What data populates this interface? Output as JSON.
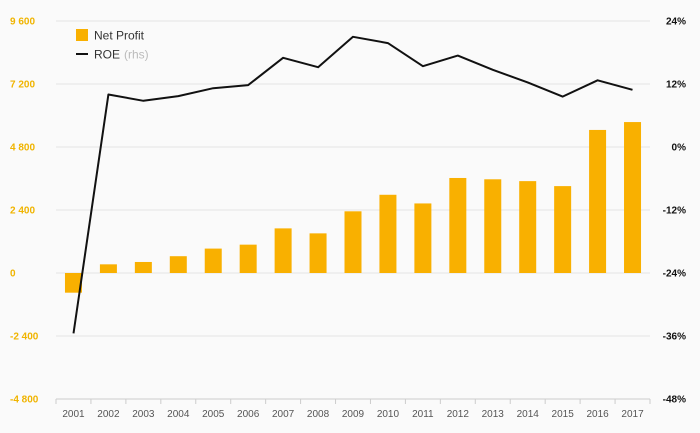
{
  "chart_data": {
    "type": "bar",
    "categories": [
      "2001",
      "2002",
      "2003",
      "2004",
      "2005",
      "2006",
      "2007",
      "2008",
      "2009",
      "2010",
      "2011",
      "2012",
      "2013",
      "2014",
      "2015",
      "2016",
      "2017"
    ],
    "series": [
      {
        "name": "Net Profit",
        "type": "bar",
        "axis": "left",
        "values": [
          -750,
          330,
          420,
          640,
          930,
          1080,
          1700,
          1510,
          2350,
          2980,
          2650,
          3620,
          3570,
          3500,
          3310,
          5450,
          5750
        ]
      },
      {
        "name": "ROE",
        "type": "line",
        "axis": "right",
        "values": [
          -35.5,
          10.0,
          8.8,
          9.7,
          11.2,
          11.8,
          17.0,
          15.2,
          21.0,
          19.8,
          15.4,
          17.4,
          14.7,
          12.3,
          9.6,
          12.7,
          10.9
        ]
      }
    ],
    "legend": {
      "position": "top-left",
      "entries": [
        {
          "label": "Net Profit",
          "note": ""
        },
        {
          "label": "ROE",
          "note": "(rhs)"
        }
      ]
    },
    "y_left": {
      "ticks": [
        -4800,
        -2400,
        0,
        2400,
        4800,
        7200,
        9600
      ],
      "tick_labels": [
        "-4 800",
        "-2 400",
        "0",
        "2 400",
        "4 800",
        "7 200",
        "9 600"
      ],
      "ylim": [
        -4800,
        9600
      ]
    },
    "y_right": {
      "ticks": [
        -48,
        -36,
        -24,
        -12,
        0,
        12,
        24
      ],
      "tick_labels": [
        "-48%",
        "-36%",
        "-24%",
        "-12%",
        "0%",
        "12%",
        "24%"
      ],
      "ylim": [
        -48,
        24
      ]
    },
    "grid": true,
    "colors": {
      "bar": "#f9b000",
      "line": "#111111",
      "left_axis_text": "#f0b400",
      "grid": "#e4e4e4",
      "background": "#fafafa"
    }
  }
}
